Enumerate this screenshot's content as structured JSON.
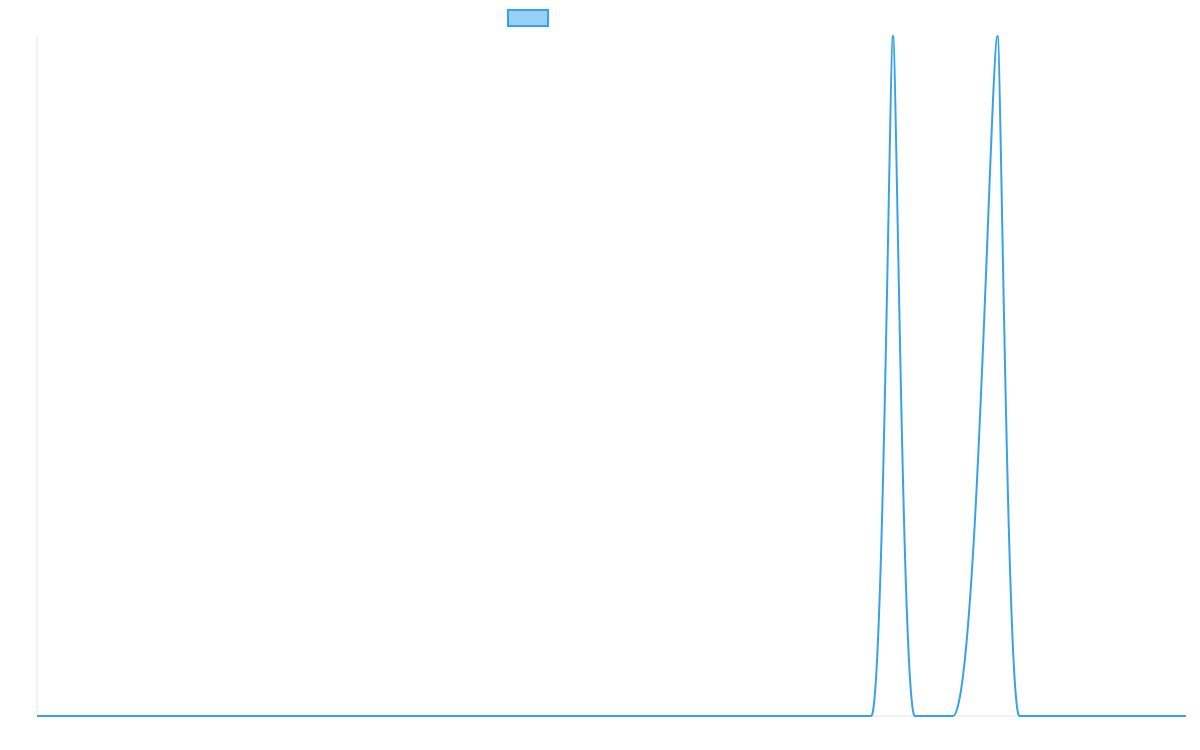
{
  "chart_data": {
    "type": "line",
    "title": "",
    "xlabel": "",
    "ylabel": "",
    "grid": false,
    "legend_position": "top-center",
    "x": [
      0,
      0.2,
      0.4,
      0.6,
      0.726,
      0.745,
      0.764,
      0.784,
      0.797,
      0.836,
      0.855,
      0.875,
      1.0
    ],
    "ylim": [
      0,
      1
    ],
    "xlim": [
      0,
      1
    ],
    "series": [
      {
        "name": "",
        "color": "#36a2eb",
        "fill": "#9ad0f5",
        "values": [
          0,
          0,
          0,
          0,
          0,
          1.0,
          0,
          0,
          0,
          1.0,
          0,
          0,
          0
        ]
      }
    ]
  }
}
